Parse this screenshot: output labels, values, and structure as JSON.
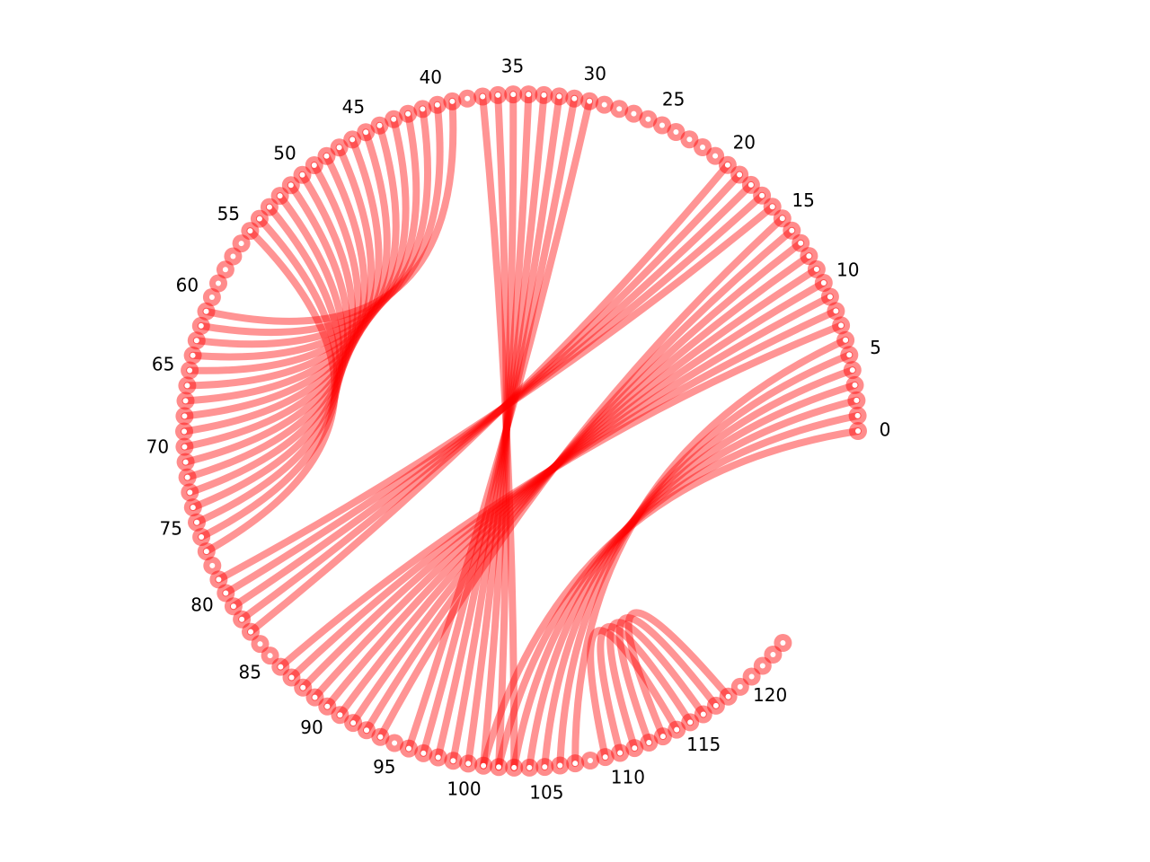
{
  "diagram": {
    "type": "circular-arc-diagram",
    "node_count": 124,
    "label_step": 5,
    "arc_span_degrees": 321,
    "colors": {
      "edge": "#ff0000",
      "node_fill": "#ff0000",
      "node_center": "#ffffff"
    },
    "tick_labels": [
      "0",
      "5",
      "10",
      "15",
      "20",
      "25",
      "30",
      "35",
      "40",
      "45",
      "50",
      "55",
      "60",
      "65",
      "70",
      "75",
      "80",
      "85",
      "90",
      "95",
      "100",
      "105",
      "110",
      "115",
      "120"
    ],
    "edges": [
      [
        0,
        101
      ],
      [
        1,
        102
      ],
      [
        2,
        103
      ],
      [
        3,
        104
      ],
      [
        4,
        105
      ],
      [
        5,
        106
      ],
      [
        6,
        107
      ],
      [
        7,
        86
      ],
      [
        8,
        87
      ],
      [
        9,
        88
      ],
      [
        10,
        89
      ],
      [
        11,
        90
      ],
      [
        12,
        91
      ],
      [
        13,
        92
      ],
      [
        14,
        93
      ],
      [
        15,
        94
      ],
      [
        16,
        79
      ],
      [
        17,
        80
      ],
      [
        18,
        81
      ],
      [
        19,
        82
      ],
      [
        20,
        83
      ],
      [
        30,
        96
      ],
      [
        31,
        97
      ],
      [
        32,
        98
      ],
      [
        33,
        99
      ],
      [
        34,
        100
      ],
      [
        35,
        101
      ],
      [
        36,
        102
      ],
      [
        37,
        103
      ],
      [
        39,
        61
      ],
      [
        40,
        62
      ],
      [
        41,
        63
      ],
      [
        42,
        64
      ],
      [
        43,
        65
      ],
      [
        44,
        66
      ],
      [
        45,
        67
      ],
      [
        46,
        68
      ],
      [
        47,
        69
      ],
      [
        48,
        70
      ],
      [
        49,
        71
      ],
      [
        50,
        72
      ],
      [
        51,
        73
      ],
      [
        52,
        74
      ],
      [
        53,
        75
      ],
      [
        54,
        76
      ],
      [
        55,
        77
      ],
      [
        109,
        114
      ],
      [
        110,
        115
      ],
      [
        111,
        116
      ],
      [
        112,
        117
      ],
      [
        113,
        118
      ]
    ]
  }
}
